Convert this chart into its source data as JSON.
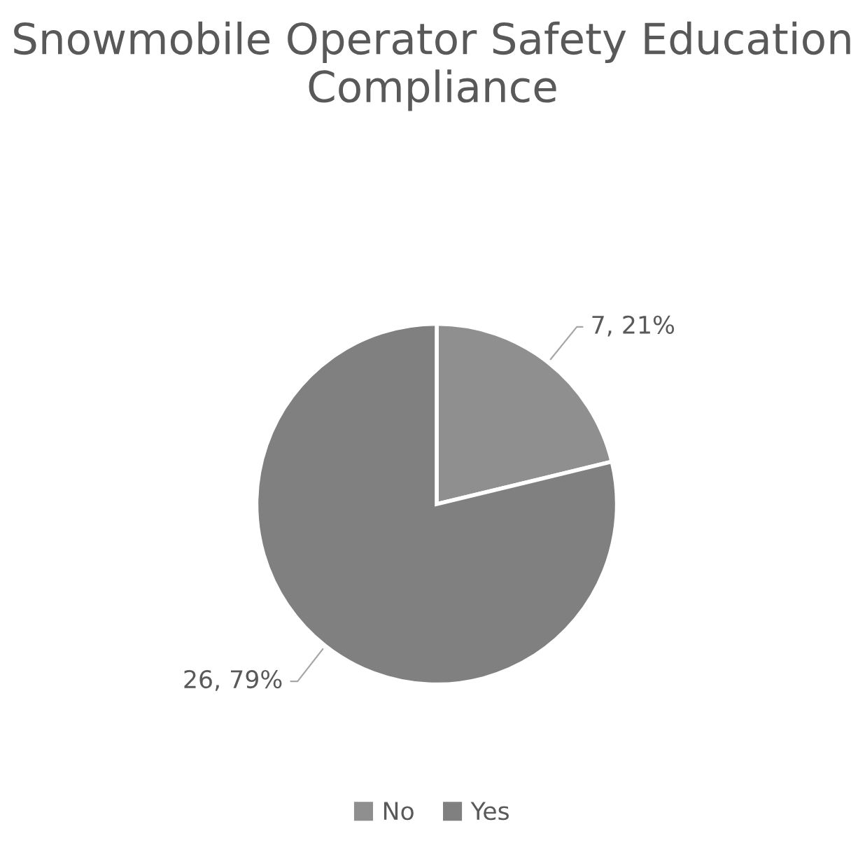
{
  "chart_data": {
    "type": "pie",
    "title": "Snowmobile Operator Safety Education Compliance",
    "categories": [
      "No",
      "Yes"
    ],
    "values": [
      7,
      26
    ],
    "colors": [
      "#8f8f8f",
      "#808080"
    ],
    "value_labels": [
      "7, 21%",
      "26, 79%"
    ],
    "legend": "bottom"
  }
}
